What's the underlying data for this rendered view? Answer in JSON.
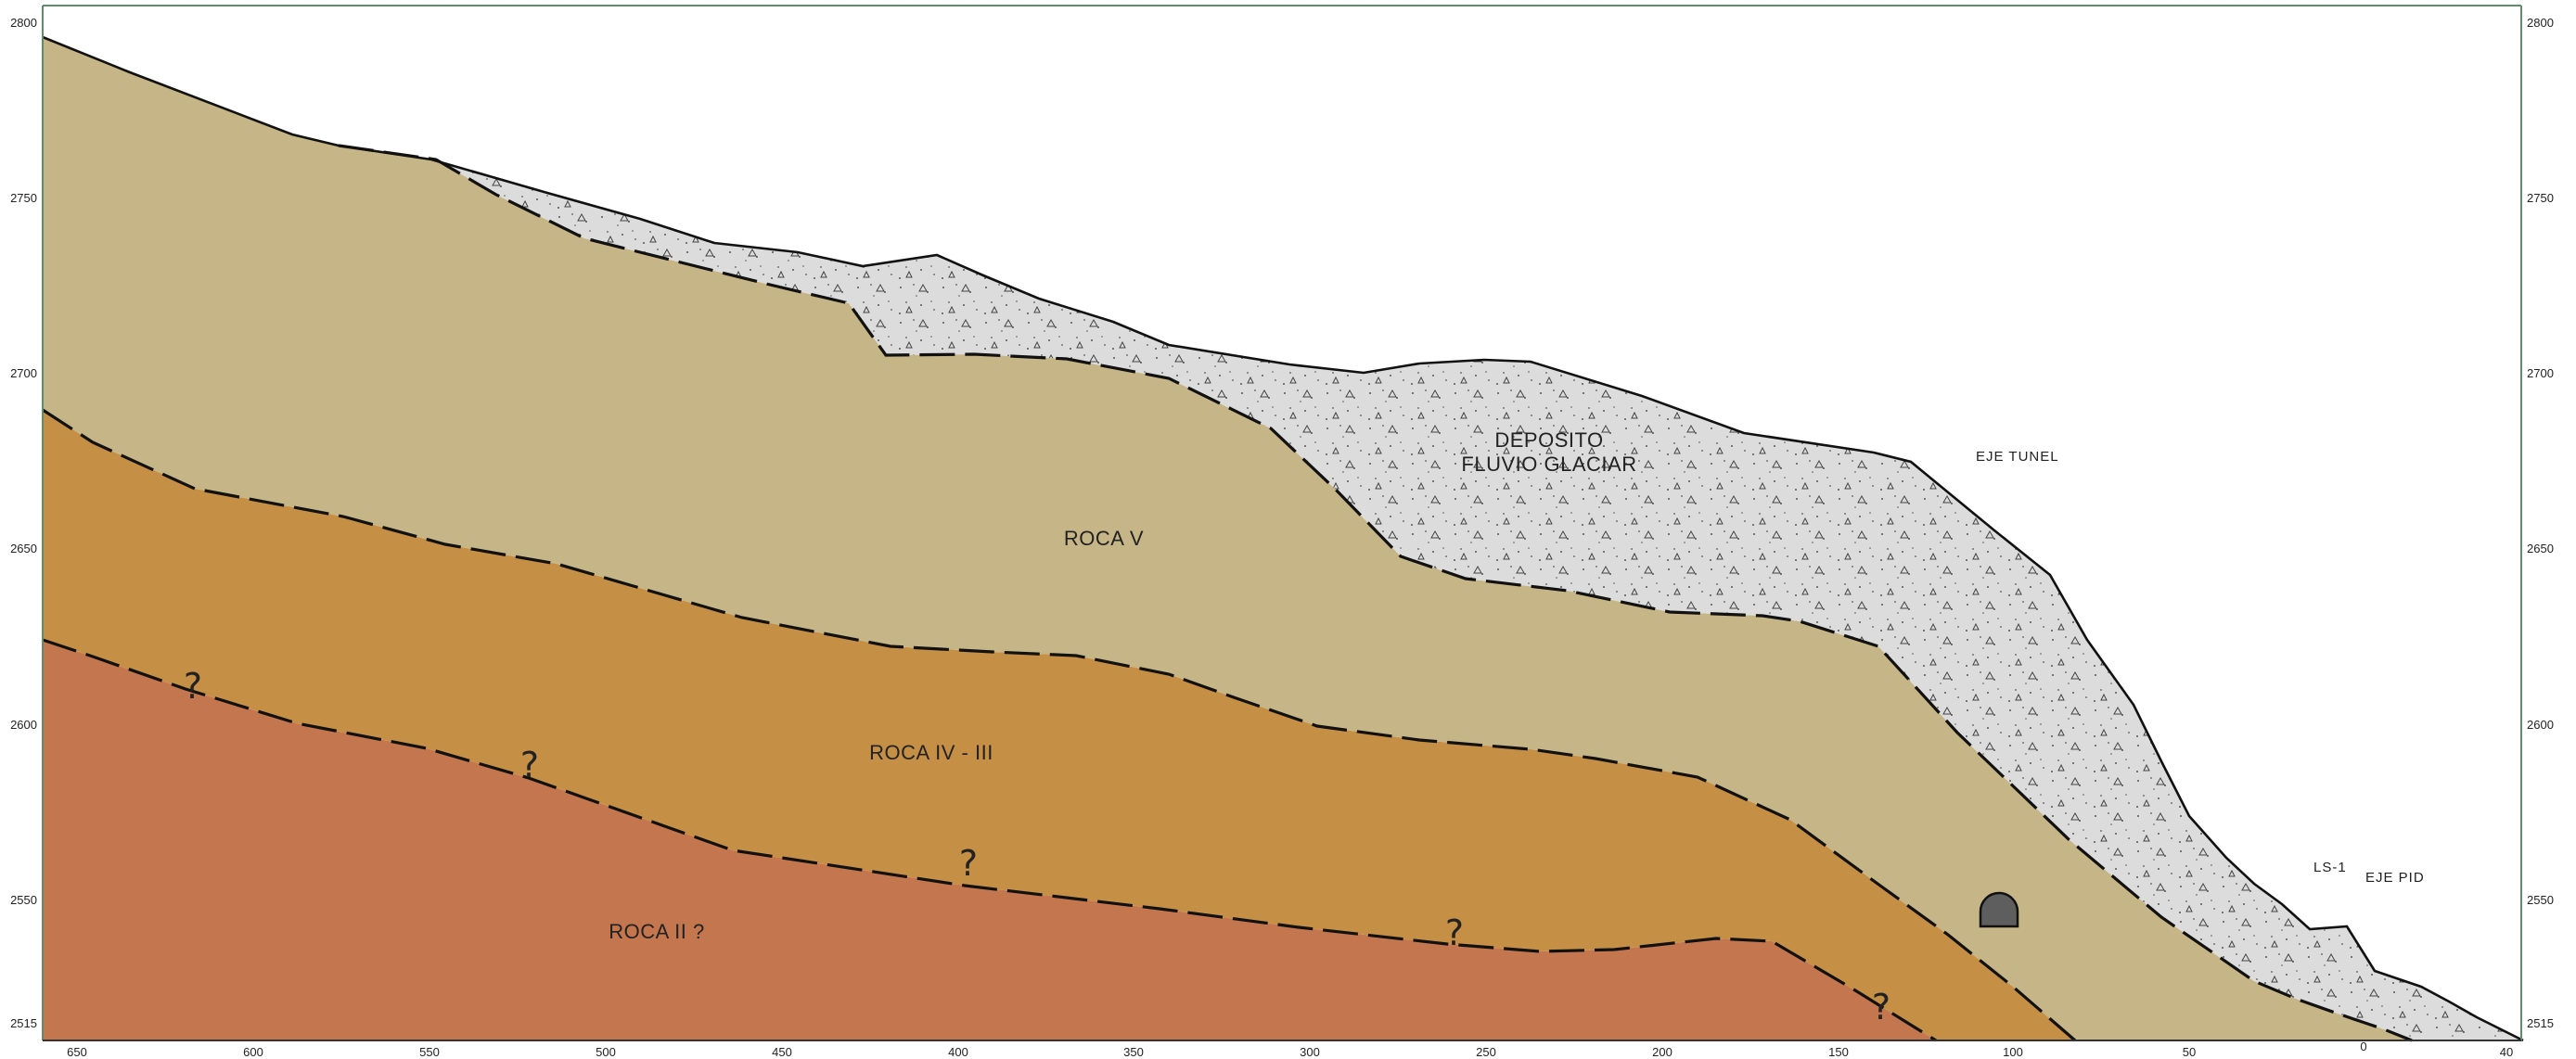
{
  "diagram": {
    "axis_left_ticks": [
      "2800",
      "2750",
      "2700",
      "2650",
      "2600",
      "2550",
      "2515"
    ],
    "axis_right_ticks": [
      "2800",
      "2750",
      "2700",
      "2650",
      "2600",
      "2550",
      "2515"
    ],
    "axis_bottom_ticks": [
      "650",
      "600",
      "550",
      "500",
      "450",
      "400",
      "350",
      "300",
      "250",
      "200",
      "150",
      "100",
      "50",
      "0",
      "40"
    ],
    "units": {
      "deposito_line1": "DEPOSITO",
      "deposito_line2": "FLUVIO GLACIAR",
      "roca_v": "ROCA V",
      "roca_iv_iii": "ROCA IV - III",
      "roca_ii": "ROCA II ?"
    },
    "labels": {
      "eje_tunel": "EJE TUNEL",
      "ls1": "LS-1",
      "eje_pid": "EJE PID"
    },
    "question_mark": "?",
    "colors": {
      "deposito": "#dcdcdc",
      "roca_v": "#c6b586",
      "roca_iv_iii": "#c68f46",
      "roca_ii": "#c4774f",
      "tunnel": "#5e5e5e",
      "frame": "#5b8e6a"
    }
  }
}
